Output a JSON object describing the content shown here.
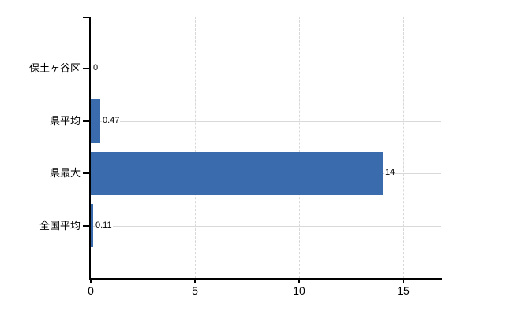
{
  "chart_data": {
    "type": "bar",
    "orientation": "horizontal",
    "title": "",
    "xlabel": "",
    "ylabel": "",
    "categories": [
      "保土ヶ谷区",
      "県平均",
      "県最大",
      "全国平均"
    ],
    "values": [
      0,
      0.47,
      14,
      0.11
    ],
    "value_labels": [
      "0",
      "0.47",
      "14",
      "0.11"
    ],
    "x_tick_values": [
      0,
      5,
      10,
      15
    ],
    "x_tick_labels": [
      "0",
      "5",
      "10",
      "15"
    ],
    "xlim": [
      0,
      16.8
    ],
    "grid": true,
    "legend": false,
    "gridline_style": "vertical dashed, horizontal solid at category centers, dashed top border",
    "colors": {
      "bar": "#3a6bac",
      "grid": "#d9d9d9",
      "axis": "#000000",
      "text": "#000000",
      "background": "#ffffff"
    }
  }
}
